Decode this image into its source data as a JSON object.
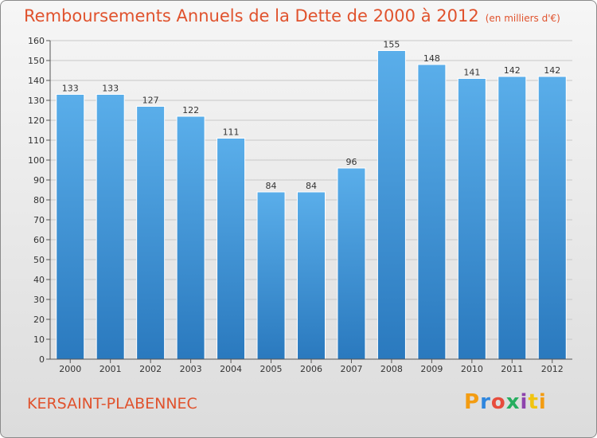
{
  "header": {
    "title": "Remboursements Annuels de la Dette de 2000 à 2012",
    "unit": "(en milliers d'€)"
  },
  "footer": {
    "commune": "KERSAINT-PLABENNEC",
    "logo_text": "Proxiti"
  },
  "colors": {
    "title": "#e0522d",
    "bar_top": "#5aaeea",
    "bar_bottom": "#2a79be",
    "gridline": "#c8c8c8"
  },
  "chart_data": {
    "type": "bar",
    "categories": [
      "2000",
      "2001",
      "2002",
      "2003",
      "2004",
      "2005",
      "2006",
      "2007",
      "2008",
      "2009",
      "2010",
      "2011",
      "2012"
    ],
    "values": [
      133,
      133,
      127,
      122,
      111,
      84,
      84,
      96,
      155,
      148,
      141,
      142,
      142
    ],
    "data_labels": [
      "133",
      "133",
      "127",
      "122",
      "111",
      "84",
      "84",
      "96",
      "155",
      "148",
      "141",
      "142",
      "142"
    ],
    "ylim": [
      0,
      160
    ],
    "yticks": [
      0,
      10,
      20,
      30,
      40,
      50,
      60,
      70,
      80,
      90,
      100,
      110,
      120,
      130,
      140,
      150,
      160
    ],
    "grid": true,
    "legend": "none"
  }
}
